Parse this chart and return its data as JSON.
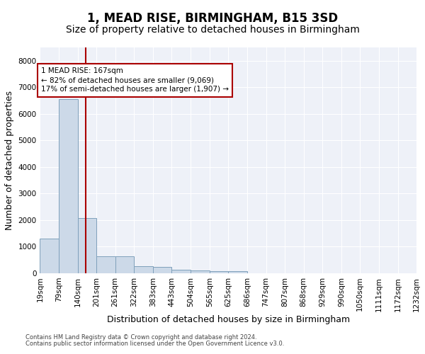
{
  "title": "1, MEAD RISE, BIRMINGHAM, B15 3SD",
  "subtitle": "Size of property relative to detached houses in Birmingham",
  "xlabel": "Distribution of detached houses by size in Birmingham",
  "ylabel": "Number of detached properties",
  "footnote1": "Contains HM Land Registry data © Crown copyright and database right 2024.",
  "footnote2": "Contains public sector information licensed under the Open Government Licence v3.0.",
  "bar_color": "#ccd9e8",
  "bar_edge_color": "#7fa0bb",
  "background_color": "#eef1f8",
  "grid_color": "#ffffff",
  "vline_color": "#aa0000",
  "annotation_line1": "1 MEAD RISE: 167sqm",
  "annotation_line2": "← 82% of detached houses are smaller (9,069)",
  "annotation_line3": "17% of semi-detached houses are larger (1,907) →",
  "annotation_box_color": "#aa0000",
  "property_size": 167,
  "bin_edges": [
    19,
    79,
    140,
    201,
    261,
    322,
    383,
    443,
    504,
    565,
    625,
    686,
    747,
    807,
    868,
    929,
    990,
    1050,
    1111,
    1172,
    1232
  ],
  "bin_counts": [
    1300,
    6550,
    2080,
    640,
    630,
    260,
    240,
    130,
    110,
    80,
    70,
    0,
    0,
    0,
    0,
    0,
    0,
    0,
    0,
    0
  ],
  "ylim": [
    0,
    8500
  ],
  "yticks": [
    0,
    1000,
    2000,
    3000,
    4000,
    5000,
    6000,
    7000,
    8000
  ],
  "title_fontsize": 12,
  "subtitle_fontsize": 10,
  "axis_label_fontsize": 9,
  "tick_fontsize": 7.5,
  "footnote_fontsize": 6
}
